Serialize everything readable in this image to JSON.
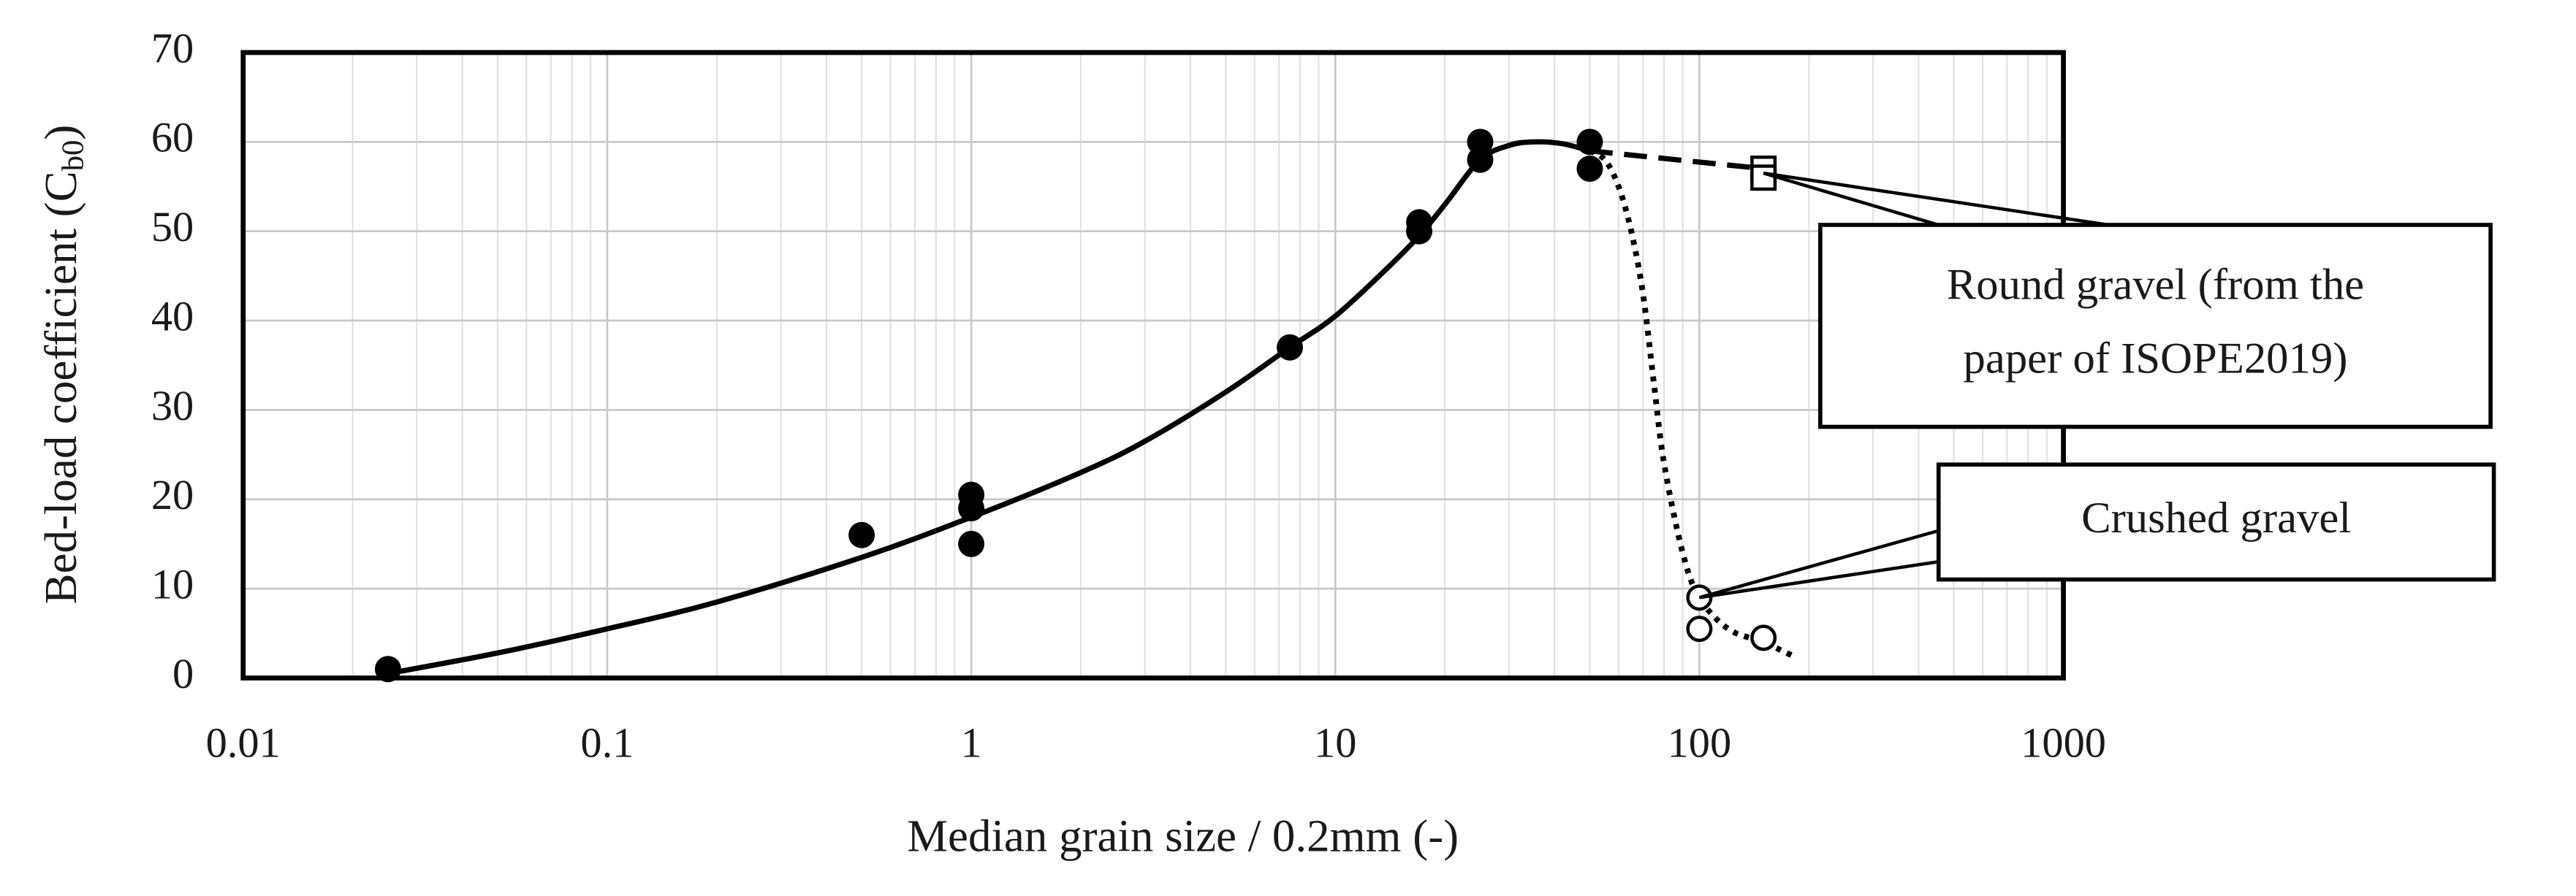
{
  "chart_data": {
    "type": "scatter",
    "xlabel": "Median grain size / 0.2mm (-)",
    "ylabel": [
      "Bed-load coefficient (C",
      "b0",
      ")"
    ],
    "xscale": "log",
    "xlim": [
      0.01,
      1000
    ],
    "xticks": [
      0.01,
      0.1,
      1,
      10,
      100,
      1000
    ],
    "ylim": [
      0,
      70
    ],
    "yticks": [
      0,
      10,
      20,
      30,
      40,
      50,
      60,
      70
    ],
    "grid": true,
    "minor_grid": true,
    "series": [
      {
        "marker": "filled-circle",
        "color": "#000000",
        "x": [
          0.025,
          0.5,
          1,
          1,
          1,
          7.5,
          17,
          17,
          25,
          25,
          50,
          50
        ],
        "values": [
          1,
          16,
          20.5,
          19,
          15,
          37,
          51,
          50,
          60,
          58,
          60,
          57
        ]
      },
      {
        "marker": "open-circle",
        "color": "#000000",
        "x": [
          100,
          100,
          150
        ],
        "values": [
          9,
          5.5,
          4.5
        ]
      },
      {
        "marker": "open-square",
        "color": "#000000",
        "x": [
          150,
          150
        ],
        "values": [
          57,
          56
        ]
      }
    ],
    "curves": [
      {
        "style": "solid",
        "color": "#000000",
        "x": [
          0.025,
          0.05,
          0.1,
          0.2,
          0.5,
          1,
          2,
          3,
          5,
          7.5,
          10,
          14,
          17,
          20,
          25,
          30,
          35,
          42,
          50
        ],
        "values": [
          0.5,
          2.8,
          5.5,
          8.5,
          13.5,
          18,
          23,
          26.5,
          32,
          37,
          40.5,
          46,
          49.5,
          53,
          58,
          59.6,
          60,
          59.8,
          59
        ]
      },
      {
        "style": "dashed",
        "color": "#000000",
        "x": [
          50,
          150
        ],
        "values": [
          59,
          57
        ]
      },
      {
        "style": "dotted",
        "color": "#000000",
        "x": [
          50,
          55,
          60,
          65,
          70,
          75,
          80,
          90,
          100,
          120,
          150,
          180
        ],
        "values": [
          59,
          58,
          55,
          50,
          43,
          33,
          24,
          14,
          9,
          5.5,
          4,
          2.5
        ]
      }
    ],
    "annotations": [
      {
        "text": [
          "Round gravel (from the",
          "paper of ISOPE2019)"
        ],
        "x": 150,
        "y": 56.5
      },
      {
        "text": [
          "Crushed gravel"
        ],
        "x": 100,
        "y": 9
      }
    ]
  }
}
